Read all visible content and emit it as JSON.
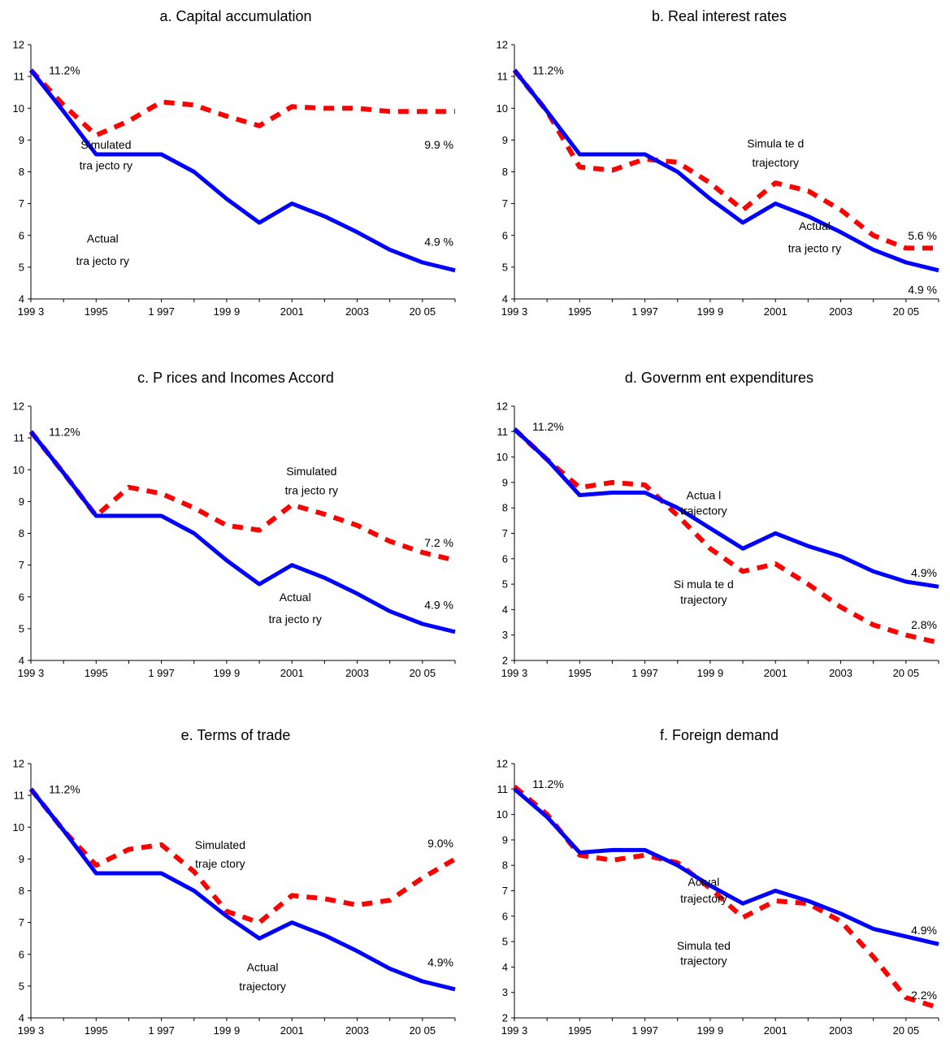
{
  "chart_data": [
    {
      "type": "line",
      "title": "a. Capital accumulation",
      "x": [
        1993,
        1994,
        1995,
        1996,
        1997,
        1998,
        1999,
        2000,
        2001,
        2002,
        2003,
        2004,
        2005,
        2006
      ],
      "x_tick_labels": [
        "199 3",
        "1995",
        "1 997",
        "199 9",
        "2001",
        "2003",
        "20 05"
      ],
      "ylim": [
        4,
        12
      ],
      "yticks": [
        4,
        5,
        6,
        7,
        8,
        9,
        10,
        11,
        12
      ],
      "series": [
        {
          "key": "actual",
          "color": "#0000ff",
          "style": "solid",
          "values": [
            11.2,
            9.9,
            8.55,
            8.55,
            8.55,
            8.0,
            7.15,
            6.4,
            7.0,
            6.6,
            6.1,
            5.55,
            5.15,
            4.9
          ]
        },
        {
          "key": "simulated",
          "color": "#ff0000",
          "style": "dashed",
          "values": [
            11.2,
            10.1,
            9.15,
            9.6,
            10.2,
            10.1,
            9.75,
            9.45,
            10.05,
            10.0,
            10.0,
            9.9,
            9.9,
            9.9
          ]
        }
      ],
      "annotations": [
        {
          "text": "11.2%",
          "at": [
            1993.55,
            11.2
          ]
        },
        {
          "text": "Simulated",
          "at": [
            1995.3,
            8.85
          ]
        },
        {
          "text": "tra jecto ry",
          "at": [
            1995.3,
            8.2
          ]
        },
        {
          "text": "9.9 %",
          "at": [
            1995.4,
            8.85
          ]
        },
        {
          "text": "Actual",
          "at": [
            1995.2,
            5.9
          ]
        },
        {
          "text": "tra jecto ry",
          "at": [
            1995.2,
            5.2
          ]
        },
        {
          "text": "4.9 %",
          "at": [
            1995.4,
            5.8
          ]
        }
      ]
    },
    {
      "type": "line",
      "title": "b. Real interest rates",
      "x": [
        1993,
        1994,
        1995,
        1996,
        1997,
        1998,
        1999,
        2000,
        2001,
        2002,
        2003,
        2004,
        2005,
        2006
      ],
      "x_tick_labels": [
        "199 3",
        "1995",
        "1 997",
        "199 9",
        "2001",
        "2003",
        "20 05"
      ],
      "ylim": [
        4,
        12
      ],
      "yticks": [
        4,
        5,
        6,
        7,
        8,
        9,
        10,
        11,
        12
      ],
      "series": [
        {
          "key": "actual",
          "color": "#0000ff",
          "style": "solid",
          "values": [
            11.2,
            9.9,
            8.55,
            8.55,
            8.55,
            8.0,
            7.15,
            6.4,
            7.0,
            6.6,
            6.1,
            5.55,
            5.15,
            4.9
          ]
        },
        {
          "key": "simulated",
          "color": "#ff0000",
          "style": "dashed",
          "values": [
            11.2,
            9.9,
            8.15,
            8.05,
            8.4,
            8.3,
            7.65,
            6.8,
            7.65,
            7.4,
            6.8,
            6.0,
            5.6,
            5.6
          ]
        }
      ],
      "annotations": [
        {
          "text": "11.2%",
          "at": [
            1993.55,
            11.2
          ]
        },
        {
          "text": "Simula te d",
          "at": [
            2001,
            8.9
          ]
        },
        {
          "text": "trajectory",
          "at": [
            2001,
            8.3
          ]
        },
        {
          "text": "5.6 %",
          "at": [
            2006,
            6.0
          ]
        },
        {
          "text": "Actual",
          "at": [
            2002.2,
            6.3
          ]
        },
        {
          "text": "tra jecto ry",
          "at": [
            2002.2,
            5.6
          ]
        },
        {
          "text": "4.9 %",
          "at": [
            2006,
            4.3
          ]
        }
      ]
    },
    {
      "type": "line",
      "title": "c. P rices and Incomes Accord",
      "x": [
        1993,
        1994,
        1995,
        1996,
        1997,
        1998,
        1999,
        2000,
        2001,
        2002,
        2003,
        2004,
        2005,
        2006
      ],
      "x_tick_labels": [
        "199 3",
        "1995",
        "1 997",
        "199 9",
        "2001",
        "2003",
        "20 05"
      ],
      "ylim": [
        4,
        12
      ],
      "yticks": [
        4,
        5,
        6,
        7,
        8,
        9,
        10,
        11,
        12
      ],
      "series": [
        {
          "key": "actual",
          "color": "#0000ff",
          "style": "solid",
          "values": [
            11.2,
            9.9,
            8.55,
            8.55,
            8.55,
            8.0,
            7.15,
            6.4,
            7.0,
            6.6,
            6.1,
            5.55,
            5.15,
            4.9
          ]
        },
        {
          "key": "simulated",
          "color": "#ff0000",
          "style": "dashed",
          "values": [
            11.2,
            9.9,
            8.55,
            9.45,
            9.25,
            8.8,
            8.25,
            8.1,
            8.9,
            8.6,
            8.25,
            7.75,
            7.4,
            7.15
          ]
        }
      ],
      "annotations": [
        {
          "text": "11.2%",
          "at": [
            1993.55,
            11.2
          ]
        },
        {
          "text": "Simulated",
          "at": [
            2001.6,
            9.95
          ]
        },
        {
          "text": "tra jecto ry",
          "at": [
            2001.6,
            9.35
          ]
        },
        {
          "text": "7.2 %",
          "at": [
            2005.75,
            7.7
          ]
        },
        {
          "text": "Actual",
          "at": [
            2001.1,
            6.0
          ]
        },
        {
          "text": "tra jecto ry",
          "at": [
            2001.1,
            5.3
          ]
        },
        {
          "text": "4.9 %",
          "at": [
            2005.75,
            5.75
          ]
        }
      ]
    },
    {
      "type": "line",
      "title": "d. Governm ent expenditures",
      "x": [
        1993,
        1994,
        1995,
        1996,
        1997,
        1998,
        1999,
        2000,
        2001,
        2002,
        2003,
        2004,
        2005,
        2006
      ],
      "x_tick_labels": [
        "199 3",
        "1995",
        "1 997",
        "199 9",
        "2001",
        "2003",
        "20 05"
      ],
      "ylim": [
        2,
        12
      ],
      "yticks": [
        2,
        3,
        4,
        5,
        6,
        7,
        8,
        9,
        10,
        11,
        12
      ],
      "series": [
        {
          "key": "actual",
          "color": "#0000ff",
          "style": "solid",
          "values": [
            11.1,
            9.9,
            8.5,
            8.6,
            8.6,
            8.0,
            7.2,
            6.4,
            7.0,
            6.5,
            6.1,
            5.5,
            5.1,
            4.9
          ]
        },
        {
          "key": "simulated",
          "color": "#ff0000",
          "style": "dashed",
          "values": [
            11.1,
            9.9,
            8.8,
            9.0,
            8.9,
            7.7,
            6.4,
            5.5,
            5.8,
            5.0,
            4.1,
            3.4,
            3.0,
            2.7
          ]
        }
      ],
      "annotations": [
        {
          "text": "11.2%",
          "at": [
            1993.55,
            11.2
          ]
        },
        {
          "text": "Actua l",
          "at": [
            1998.8,
            8.5
          ]
        },
        {
          "text": "trajectory",
          "at": [
            1998.8,
            7.9
          ]
        },
        {
          "text": "4.9%",
          "at": [
            2005.75,
            5.45
          ]
        },
        {
          "text": "Si mula te d",
          "at": [
            1998.8,
            5.0
          ]
        },
        {
          "text": "trajectory",
          "at": [
            1998.8,
            4.4
          ]
        },
        {
          "text": "2.8%",
          "at": [
            2005.75,
            3.4
          ]
        }
      ]
    },
    {
      "type": "line",
      "title": "e. Terms of trade",
      "x": [
        1993,
        1994,
        1995,
        1996,
        1997,
        1998,
        1999,
        2000,
        2001,
        2002,
        2003,
        2004,
        2005,
        2006
      ],
      "x_tick_labels": [
        "199 3",
        "1995",
        "1 997",
        "199 9",
        "2001",
        "2003",
        "20 05"
      ],
      "ylim": [
        4,
        12
      ],
      "yticks": [
        4,
        5,
        6,
        7,
        8,
        9,
        10,
        11,
        12
      ],
      "series": [
        {
          "key": "actual",
          "color": "#0000ff",
          "style": "solid",
          "values": [
            11.2,
            9.9,
            8.55,
            8.55,
            8.55,
            8.0,
            7.2,
            6.5,
            7.0,
            6.6,
            6.1,
            5.55,
            5.15,
            4.9
          ]
        },
        {
          "key": "simulated",
          "color": "#ff0000",
          "style": "dashed",
          "values": [
            11.2,
            9.9,
            8.8,
            9.3,
            9.45,
            8.6,
            7.35,
            7.0,
            7.85,
            7.75,
            7.55,
            7.7,
            8.4,
            9.0
          ]
        }
      ],
      "annotations": [
        {
          "text": "11.2%",
          "at": [
            1993.55,
            11.2
          ]
        },
        {
          "text": "Simulated",
          "at": [
            1998.8,
            9.45
          ]
        },
        {
          "text": "traje ctory",
          "at": [
            1998.8,
            8.85
          ]
        },
        {
          "text": "9.0%",
          "at": [
            2005.75,
            9.5
          ]
        },
        {
          "text": "Actual",
          "at": [
            2000.1,
            5.6
          ]
        },
        {
          "text": "trajectory",
          "at": [
            2000.1,
            5.0
          ]
        },
        {
          "text": "4.9%",
          "at": [
            2005.75,
            5.75
          ]
        }
      ]
    },
    {
      "type": "line",
      "title": "f. Foreign demand",
      "x": [
        1993,
        1994,
        1995,
        1996,
        1997,
        1998,
        1999,
        2000,
        2001,
        2002,
        2003,
        2004,
        2005,
        2006
      ],
      "x_tick_labels": [
        "199 3",
        "1995",
        "1 997",
        "199 9",
        "2001",
        "2003",
        "20 05"
      ],
      "ylim": [
        2,
        12
      ],
      "yticks": [
        2,
        3,
        4,
        5,
        6,
        7,
        8,
        9,
        10,
        11,
        12
      ],
      "series": [
        {
          "key": "actual",
          "color": "#0000ff",
          "style": "solid",
          "values": [
            11.0,
            9.9,
            8.5,
            8.6,
            8.6,
            8.0,
            7.2,
            6.5,
            7.0,
            6.6,
            6.1,
            5.5,
            5.2,
            4.9
          ]
        },
        {
          "key": "simulated",
          "color": "#ff0000",
          "style": "dashed",
          "values": [
            11.1,
            10.0,
            8.4,
            8.2,
            8.4,
            8.1,
            7.1,
            5.95,
            6.6,
            6.5,
            5.8,
            4.4,
            2.8,
            2.4
          ]
        }
      ],
      "annotations": [
        {
          "text": "11.2%",
          "at": [
            1993.55,
            11.2
          ]
        },
        {
          "text": "Actual",
          "at": [
            1998.8,
            7.35
          ]
        },
        {
          "text": "trajectory",
          "at": [
            1998.8,
            6.7
          ]
        },
        {
          "text": "4.9%",
          "at": [
            2005.75,
            5.45
          ]
        },
        {
          "text": "Simula ted",
          "at": [
            1998.8,
            4.85
          ]
        },
        {
          "text": "trajectory",
          "at": [
            1998.8,
            4.25
          ]
        },
        {
          "text": "2.2%",
          "at": [
            2005.75,
            2.9
          ]
        }
      ]
    }
  ]
}
